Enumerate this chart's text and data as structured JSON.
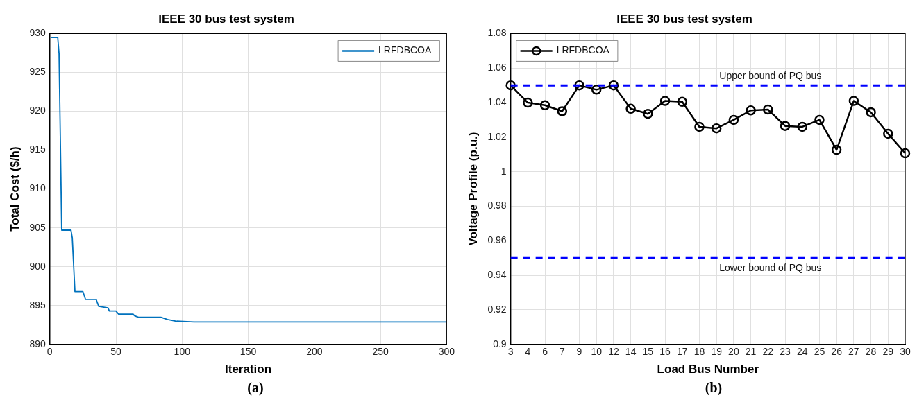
{
  "chart_data": [
    {
      "type": "line",
      "title": "IEEE 30 bus test system",
      "xlabel": "Iteration",
      "ylabel": "Total Cost ($/h)",
      "xlim": [
        0,
        300
      ],
      "xticks": [
        0,
        50,
        100,
        150,
        200,
        250,
        300
      ],
      "ylim": [
        890,
        930
      ],
      "yticks": [
        890,
        895,
        900,
        905,
        910,
        915,
        920,
        925,
        930
      ],
      "grid": true,
      "legend": "top right",
      "marker": "none",
      "line_style": "solid",
      "annotations": [
        "(a)"
      ],
      "series": [
        {
          "name": "LRFDBCOA",
          "color": "#0072bd",
          "x": [
            1,
            6,
            7,
            9,
            16,
            17,
            19,
            25,
            27,
            35,
            37,
            44,
            45,
            50,
            52,
            63,
            64,
            67,
            84,
            89,
            95,
            109,
            139,
            300
          ],
          "values": [
            929.5,
            929.5,
            927.4,
            904.7,
            904.7,
            903.7,
            896.8,
            896.8,
            895.8,
            895.8,
            894.9,
            894.7,
            894.3,
            894.3,
            893.9,
            893.9,
            893.7,
            893.5,
            893.5,
            893.2,
            893.0,
            892.9,
            892.9,
            892.9
          ]
        }
      ]
    },
    {
      "type": "line",
      "title": "IEEE 30 bus test system",
      "xlabel": "Load Bus Number",
      "ylabel": "Voltage Profile (p.u.)",
      "categories": [
        "3",
        "4",
        "6",
        "7",
        "9",
        "10",
        "12",
        "14",
        "15",
        "16",
        "17",
        "18",
        "19",
        "20",
        "21",
        "22",
        "23",
        "24",
        "25",
        "26",
        "27",
        "28",
        "29",
        "30"
      ],
      "ylim": [
        0.9,
        1.08
      ],
      "yticks": [
        0.9,
        0.92,
        0.94,
        0.96,
        0.98,
        1,
        1.02,
        1.04,
        1.06,
        1.08
      ],
      "grid": true,
      "legend": "top left",
      "marker": "circle",
      "line_style": "solid",
      "annotations": [
        "(b)"
      ],
      "ref_lines": [
        {
          "axis": "y",
          "value": 1.05,
          "label": "Upper bound of PQ bus",
          "color": "#0000ff",
          "line_style": "dashed"
        },
        {
          "axis": "y",
          "value": 0.95,
          "label": "Lower bound of PQ bus",
          "color": "#0000ff",
          "line_style": "dashed"
        }
      ],
      "series": [
        {
          "name": "LRFDBCOA",
          "color": "#000000",
          "values": [
            1.05,
            1.04,
            1.0385,
            1.035,
            1.05,
            1.0475,
            1.05,
            1.0365,
            1.0335,
            1.041,
            1.0405,
            1.026,
            1.0251,
            1.03,
            1.0355,
            1.036,
            1.0265,
            1.026,
            1.03,
            1.0127,
            1.041,
            1.0344,
            1.022,
            1.0107
          ]
        }
      ]
    }
  ]
}
